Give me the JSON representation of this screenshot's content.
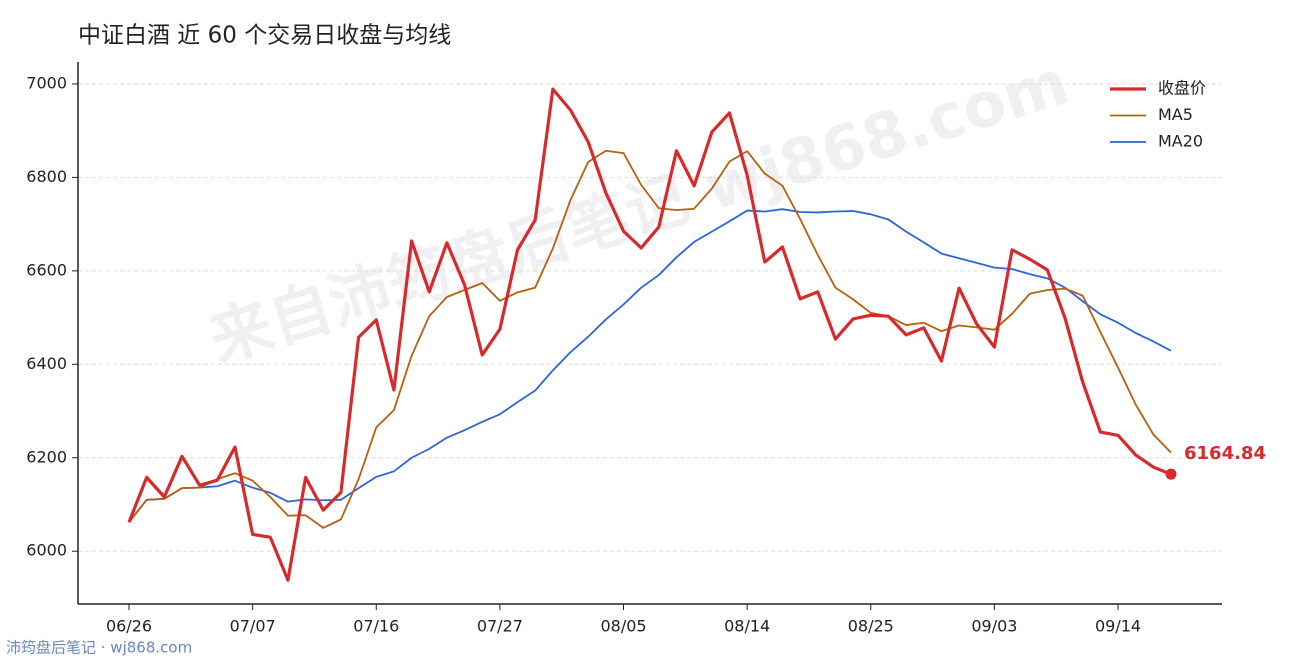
{
  "chart_data": {
    "type": "line",
    "title": "中证白酒 近 60 个交易日收盘与均线",
    "watermark": "来自沛筠盘后笔记 wj868.com",
    "source": "沛筠盘后笔记 · wj868.com",
    "categories": [
      "06/26",
      null,
      null,
      null,
      null,
      null,
      null,
      "07/07",
      null,
      null,
      null,
      null,
      null,
      null,
      "07/16",
      null,
      null,
      null,
      null,
      null,
      null,
      "07/27",
      null,
      null,
      null,
      null,
      null,
      null,
      "08/05",
      null,
      null,
      null,
      null,
      null,
      null,
      "08/14",
      null,
      null,
      null,
      null,
      null,
      null,
      "08/25",
      null,
      null,
      null,
      null,
      null,
      null,
      "09/03",
      null,
      null,
      null,
      null,
      null,
      null,
      "09/14",
      null,
      null,
      null
    ],
    "series": [
      {
        "name": "收盘价",
        "color": "#d62a2c",
        "width": 3.2,
        "values": [
          6062,
          6158,
          6116,
          6203,
          6141,
          6152,
          6223,
          6036,
          6030,
          5938,
          6158,
          6088,
          6126,
          6458,
          6495,
          6345,
          6664,
          6555,
          6660,
          6570,
          6420,
          6475,
          6645,
          6709,
          6989,
          6944,
          6876,
          6767,
          6685,
          6649,
          6694,
          6857,
          6782,
          6897,
          6938,
          6805,
          6619,
          6651,
          6540,
          6555,
          6454,
          6497,
          6505,
          6503,
          6463,
          6478,
          6407,
          6563,
          6486,
          6437,
          6645,
          6625,
          6602,
          6499,
          6362,
          6255,
          6248,
          6206,
          6180,
          6164.84
        ]
      },
      {
        "name": "MA5",
        "color": "#b8600f",
        "width": 1.8,
        "values": [
          6062,
          6110,
          6112,
          6135,
          6136,
          6154,
          6167,
          6151,
          6116,
          6076,
          6077,
          6050,
          6068,
          6154,
          6265,
          6302,
          6418,
          6503,
          6544,
          6559,
          6574,
          6536,
          6554,
          6564,
          6648,
          6752,
          6833,
          6857,
          6852,
          6784,
          6734,
          6730,
          6733,
          6776,
          6834,
          6856,
          6808,
          6782,
          6711,
          6634,
          6564,
          6539,
          6510,
          6503,
          6484,
          6489,
          6471,
          6483,
          6479,
          6474,
          6508,
          6551,
          6559,
          6562,
          6547,
          6469,
          6393,
          6314,
          6250,
          6211
        ]
      },
      {
        "name": "MA20",
        "color": "#2f64d8",
        "width": 1.8,
        "values": [
          6062,
          6110,
          6112,
          6135,
          6136,
          6139,
          6151,
          6136,
          6125,
          6106,
          6111,
          6109,
          6110,
          6135,
          6159,
          6171,
          6200,
          6219,
          6243,
          6259,
          6277,
          6293,
          6319,
          6344,
          6387,
          6426,
          6459,
          6496,
          6528,
          6564,
          6591,
          6629,
          6662,
          6684,
          6706,
          6729,
          6727,
          6732,
          6726,
          6725,
          6727,
          6728,
          6721,
          6710,
          6684,
          6661,
          6637,
          6627,
          6617,
          6607,
          6604,
          6593,
          6584,
          6564,
          6535,
          6507,
          6489,
          6467,
          6449,
          6429
        ]
      }
    ],
    "ylim": [
      5887,
      7047
    ],
    "yticks": [
      6000,
      6200,
      6400,
      6600,
      6800,
      7000
    ],
    "grid": true,
    "legend": "upper right"
  }
}
